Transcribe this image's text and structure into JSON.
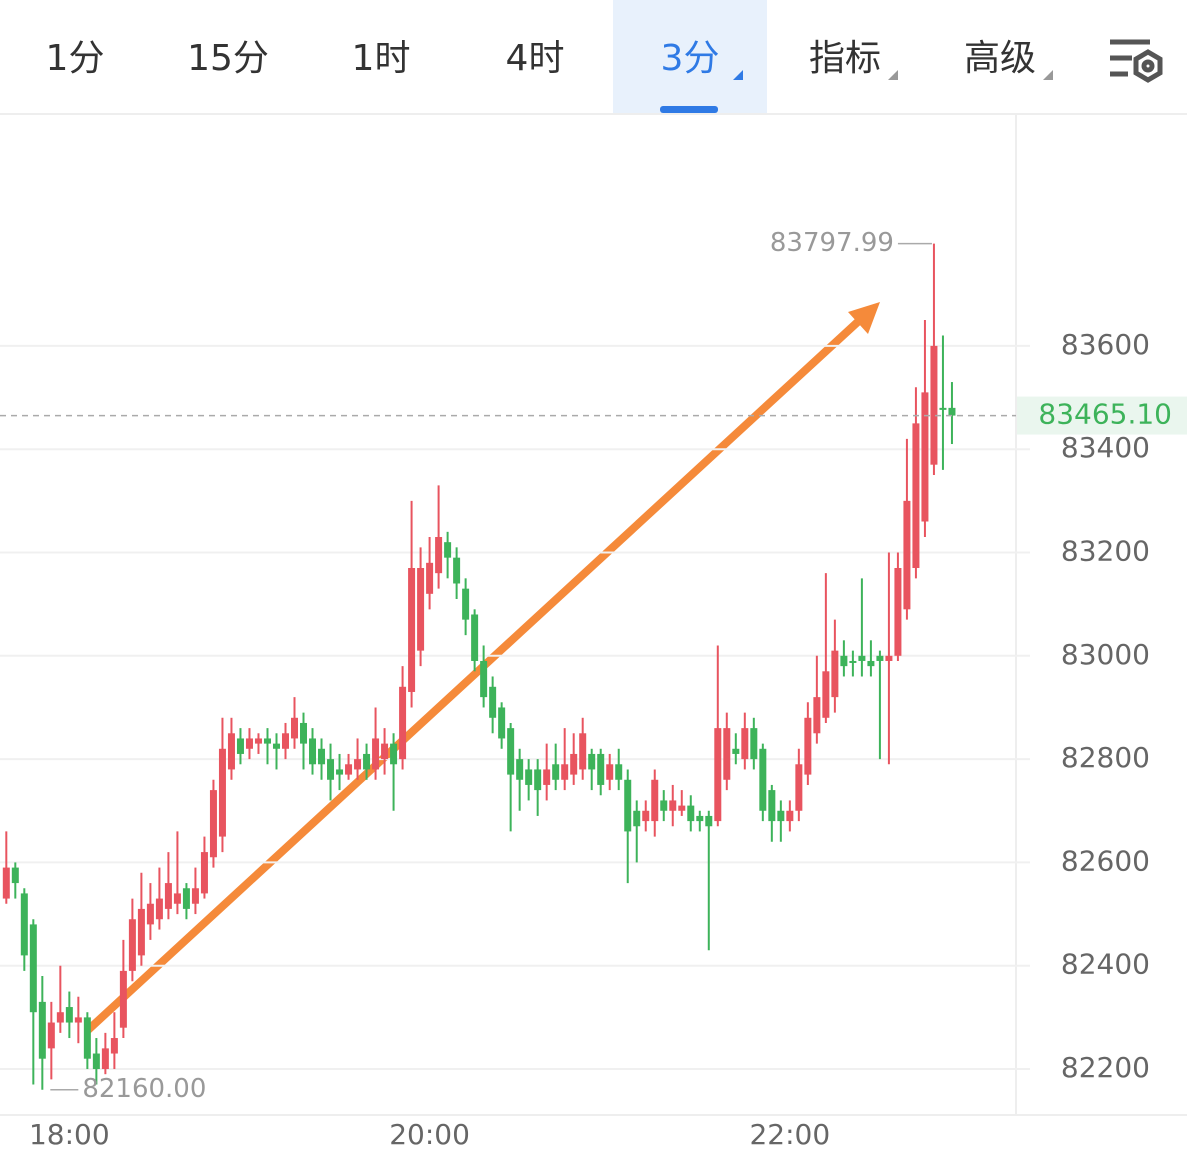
{
  "tabs": {
    "items": [
      "1分",
      "15分",
      "1时",
      "4时",
      "3分",
      "指标",
      "高级"
    ],
    "active": 4,
    "dropdown": [
      4,
      5,
      6
    ]
  },
  "chart_data": {
    "type": "candlestick",
    "up_color": "#e8545f",
    "down_color": "#3db35a",
    "open": [
      82530,
      82590,
      82540,
      82480,
      82330,
      82240,
      82290,
      82320,
      82290,
      82300,
      82230,
      82200,
      82230,
      82280,
      82390,
      82420,
      82480,
      82490,
      82510,
      82520,
      82550,
      82520,
      82540,
      82610,
      82650,
      82780,
      82840,
      82820,
      82830,
      82840,
      82830,
      82820,
      82840,
      82870,
      82840,
      82820,
      82800,
      82780,
      82770,
      82780,
      82810,
      82780,
      82800,
      82830,
      82800,
      82930,
      83010,
      83120,
      83160,
      83220,
      83190,
      83130,
      83080,
      82990,
      82940,
      82900,
      82860,
      82800,
      82780,
      82780,
      82750,
      82790,
      82760,
      82770,
      82780,
      82810,
      82810,
      82760,
      82790,
      82760,
      82700,
      82680,
      82680,
      82720,
      82700,
      82700,
      82710,
      82690,
      82690,
      82680,
      82760,
      82820,
      82800,
      82860,
      82820,
      82740,
      82700,
      82680,
      82700,
      82770,
      82850,
      82880,
      82920,
      83000,
      82990,
      83000,
      82990,
      83000,
      82990,
      83000,
      83090,
      83170,
      83260,
      83370,
      83480,
      83480
    ],
    "high": [
      82660,
      82600,
      82550,
      82490,
      82380,
      82330,
      82400,
      82350,
      82340,
      82310,
      82260,
      82270,
      82310,
      82450,
      82530,
      82580,
      82560,
      82590,
      82620,
      82660,
      82560,
      82590,
      82650,
      82760,
      82880,
      82880,
      82860,
      82860,
      82850,
      82860,
      82850,
      82870,
      82920,
      82890,
      82860,
      82840,
      82830,
      82810,
      82810,
      82840,
      82830,
      82900,
      82860,
      82850,
      82980,
      83300,
      83210,
      83230,
      83330,
      83240,
      83210,
      83150,
      83090,
      83020,
      82960,
      82910,
      82870,
      82820,
      82800,
      82800,
      82830,
      82830,
      82860,
      82850,
      82880,
      82820,
      82820,
      82810,
      82820,
      82780,
      82720,
      82720,
      82780,
      82740,
      82750,
      82740,
      82730,
      82700,
      82700,
      83020,
      82890,
      82850,
      82890,
      82880,
      82830,
      82750,
      82720,
      82720,
      82820,
      82910,
      83000,
      83160,
      83070,
      83030,
      83010,
      83150,
      83030,
      83010,
      83200,
      83200,
      83420,
      83520,
      83650,
      83797.99,
      83620,
      83530
    ],
    "low": [
      82520,
      82530,
      82390,
      82170,
      82160,
      82180,
      82270,
      82260,
      82250,
      82200,
      82170,
      82190,
      82200,
      82260,
      82370,
      82400,
      82450,
      82470,
      82490,
      82500,
      82490,
      82500,
      82530,
      82590,
      82620,
      82760,
      82790,
      82800,
      82810,
      82790,
      82780,
      82800,
      82820,
      82780,
      82770,
      82760,
      82720,
      82740,
      82760,
      82760,
      82760,
      82760,
      82770,
      82700,
      82780,
      82900,
      82980,
      83090,
      83130,
      83150,
      83110,
      83040,
      82970,
      82900,
      82850,
      82820,
      82660,
      82700,
      82720,
      82690,
      82720,
      82740,
      82740,
      82750,
      82760,
      82740,
      82730,
      82740,
      82740,
      82560,
      82600,
      82660,
      82650,
      82680,
      82670,
      82690,
      82660,
      82660,
      82430,
      82670,
      82740,
      82790,
      82780,
      82780,
      82680,
      82640,
      82640,
      82660,
      82680,
      82750,
      82830,
      82870,
      82890,
      82960,
      82960,
      82960,
      82960,
      82800,
      82790,
      82990,
      83070,
      83150,
      83230,
      83350,
      83360,
      83410
    ],
    "close": [
      82590,
      82560,
      82420,
      82310,
      82220,
      82290,
      82310,
      82290,
      82300,
      82220,
      82200,
      82240,
      82260,
      82390,
      82490,
      82510,
      82520,
      82530,
      82560,
      82540,
      82510,
      82550,
      82620,
      82740,
      82820,
      82850,
      82810,
      82840,
      82840,
      82830,
      82820,
      82850,
      82880,
      82830,
      82790,
      82790,
      82760,
      82770,
      82790,
      82800,
      82780,
      82840,
      82830,
      82790,
      82940,
      83170,
      83170,
      83180,
      83230,
      83190,
      83140,
      83070,
      82990,
      82920,
      82880,
      82840,
      82770,
      82760,
      82750,
      82740,
      82780,
      82760,
      82790,
      82810,
      82850,
      82780,
      82750,
      82790,
      82760,
      82660,
      82670,
      82700,
      82760,
      82700,
      82720,
      82710,
      82680,
      82680,
      82670,
      82860,
      82860,
      82810,
      82860,
      82800,
      82700,
      82680,
      82680,
      82700,
      82790,
      82880,
      82920,
      82970,
      83010,
      82980,
      82990,
      82990,
      82980,
      82990,
      83000,
      83170,
      83300,
      83450,
      83510,
      83600,
      83480,
      83465.1
    ],
    "xlim": [
      -0.7,
      112
    ],
    "xticks": [
      {
        "value": 7,
        "label": "18:00"
      },
      {
        "value": 47,
        "label": "20:00"
      },
      {
        "value": 87,
        "label": "22:00"
      }
    ],
    "ylim": [
      82111,
      84047
    ],
    "yticks": [
      82200,
      82400,
      82600,
      82800,
      83000,
      83200,
      83400,
      83600
    ],
    "grid": true,
    "max_label": 83797.99,
    "min_label": {
      "value": 82160,
      "label": "82160.00"
    },
    "last_price": {
      "value": 83465.1,
      "label": "83465.10"
    }
  }
}
